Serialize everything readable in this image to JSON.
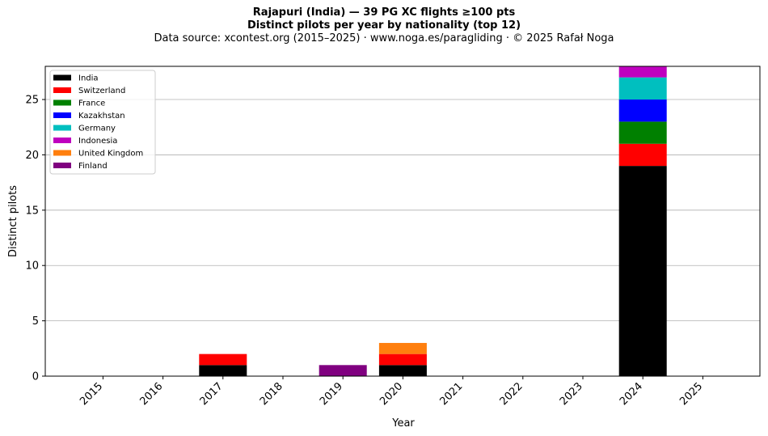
{
  "title": "Rajapuri (India)  —  39 PG XC flights ≥100 pts",
  "subtitle": "Distinct pilots per year by nationality (top 12)",
  "source": "Data source: xcontest.org (2015–2025)  ·  www.noga.es/paragliding  ·  © 2025 Rafał Noga",
  "chart_data": {
    "type": "bar",
    "stacked": true,
    "categories": [
      "2015",
      "2016",
      "2017",
      "2018",
      "2019",
      "2020",
      "2021",
      "2022",
      "2023",
      "2024",
      "2025"
    ],
    "xlabel": "Year",
    "ylabel": "Distinct pilots",
    "ylim": [
      0,
      28
    ],
    "yticks": [
      0,
      5,
      10,
      15,
      20,
      25
    ],
    "grid": "y",
    "legend_position": "top-left",
    "series": [
      {
        "name": "India",
        "color": "#000000",
        "values": [
          0,
          0,
          1,
          0,
          0,
          1,
          0,
          0,
          0,
          19,
          0
        ]
      },
      {
        "name": "Switzerland",
        "color": "#ff0000",
        "values": [
          0,
          0,
          1,
          0,
          0,
          1,
          0,
          0,
          0,
          2,
          0
        ]
      },
      {
        "name": "France",
        "color": "#008000",
        "values": [
          0,
          0,
          0,
          0,
          0,
          0,
          0,
          0,
          0,
          2,
          0
        ]
      },
      {
        "name": "Kazakhstan",
        "color": "#0000ff",
        "values": [
          0,
          0,
          0,
          0,
          0,
          0,
          0,
          0,
          0,
          2,
          0
        ]
      },
      {
        "name": "Germany",
        "color": "#00bfbf",
        "values": [
          0,
          0,
          0,
          0,
          0,
          0,
          0,
          0,
          0,
          2,
          0
        ]
      },
      {
        "name": "Indonesia",
        "color": "#bf00bf",
        "values": [
          0,
          0,
          0,
          0,
          0,
          0,
          0,
          0,
          0,
          1,
          0
        ]
      },
      {
        "name": "United Kingdom",
        "color": "#ff7f0e",
        "values": [
          0,
          0,
          0,
          0,
          0,
          1,
          0,
          0,
          0,
          0,
          0
        ]
      },
      {
        "name": "Finland",
        "color": "#800080",
        "values": [
          0,
          0,
          0,
          0,
          1,
          0,
          0,
          0,
          0,
          0,
          0
        ]
      }
    ]
  }
}
